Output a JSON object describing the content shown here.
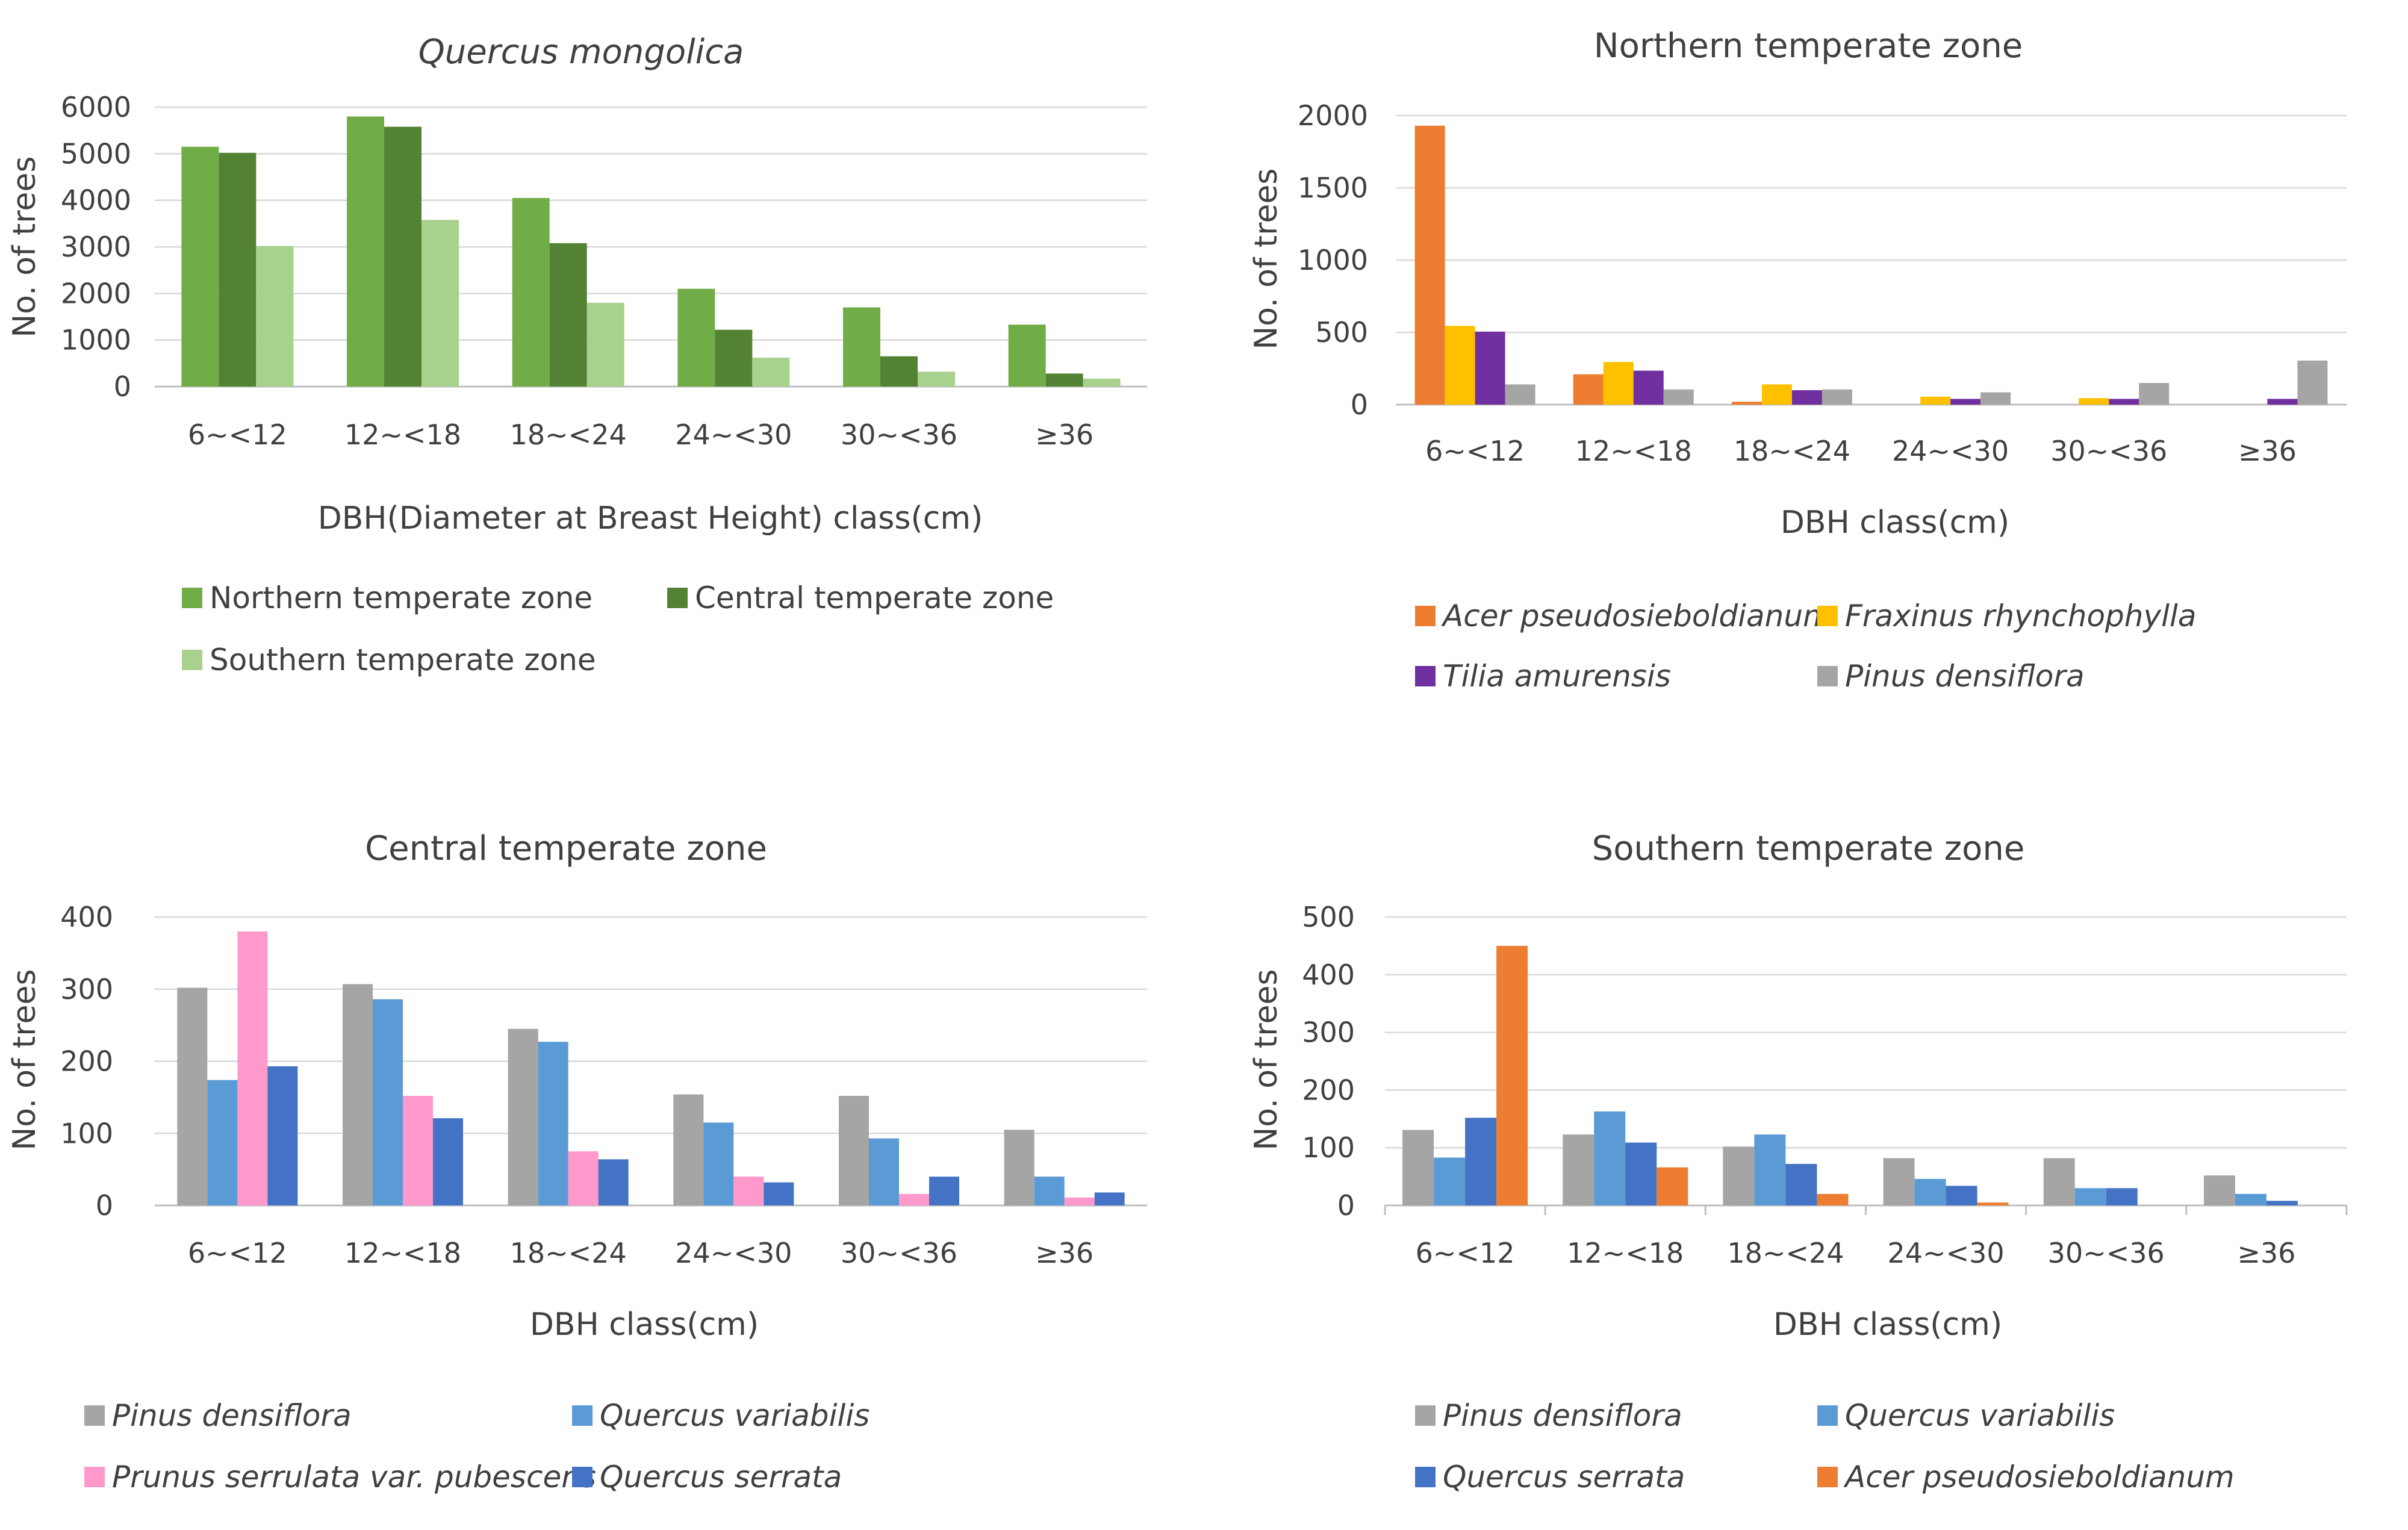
{
  "chart_data": [
    {
      "type": "bar",
      "title": "Quercus mongolica",
      "xlabel": "DBH(Diameter at Breast Height) class(cm)",
      "ylabel": "No. of trees",
      "ylim": [
        0,
        6000
      ],
      "yticks": [
        "0",
        "1000",
        "2000",
        "3000",
        "4000",
        "5000",
        "6000"
      ],
      "categories": [
        "6~<12",
        "12~<18",
        "18~<24",
        "24~<30",
        "30~<36",
        "≥36"
      ],
      "series": [
        {
          "name": "Northern temperate zone",
          "color": "#70ad47",
          "italic": false,
          "values": [
            5150,
            5800,
            4050,
            2100,
            1700,
            1330
          ]
        },
        {
          "name": "Central temperate zone",
          "color": "#548235",
          "italic": false,
          "values": [
            5020,
            5580,
            3080,
            1220,
            650,
            280
          ]
        },
        {
          "name": "Southern temperate zone",
          "color": "#a9d18e",
          "italic": false,
          "values": [
            3020,
            3580,
            1800,
            620,
            320,
            170
          ]
        }
      ]
    },
    {
      "type": "bar",
      "title": "Northern temperate zone",
      "xlabel": "DBH class(cm)",
      "ylabel": "No. of trees",
      "ylim": [
        0,
        2000
      ],
      "yticks": [
        "0",
        "500",
        "1000",
        "1500",
        "2000"
      ],
      "categories": [
        "6~<12",
        "12~<18",
        "18~<24",
        "24~<30",
        "30~<36",
        "≥36"
      ],
      "series": [
        {
          "name": "Acer pseudosieboldianum",
          "color": "#ed7d31",
          "italic": true,
          "values": [
            1930,
            210,
            20,
            0,
            0,
            0
          ]
        },
        {
          "name": "Fraxinus rhynchophylla",
          "color": "#ffc000",
          "italic": true,
          "values": [
            545,
            295,
            140,
            55,
            45,
            0
          ]
        },
        {
          "name": "Tilia amurensis",
          "color": "#7030a0",
          "italic": true,
          "values": [
            505,
            235,
            100,
            40,
            40,
            40
          ]
        },
        {
          "name": "Pinus densiflora",
          "color": "#a5a5a5",
          "italic": true,
          "values": [
            140,
            105,
            105,
            85,
            150,
            305
          ]
        }
      ]
    },
    {
      "type": "bar",
      "title": "Central temperate zone",
      "xlabel": "DBH class(cm)",
      "ylabel": "No. of trees",
      "ylim": [
        0,
        400
      ],
      "yticks": [
        "0",
        "100",
        "200",
        "300",
        "400"
      ],
      "categories": [
        "6~<12",
        "12~<18",
        "18~<24",
        "24~<30",
        "30~<36",
        "≥36"
      ],
      "series": [
        {
          "name": "Pinus densiflora",
          "color": "#a5a5a5",
          "italic": true,
          "values": [
            302,
            307,
            245,
            154,
            152,
            105
          ]
        },
        {
          "name": "Quercus variabilis",
          "color": "#5b9bd5",
          "italic": true,
          "values": [
            174,
            286,
            227,
            115,
            93,
            40
          ]
        },
        {
          "name": "Prunus serrulata var. pubescens",
          "color": "#ff99cc",
          "italic": true,
          "values": [
            380,
            152,
            75,
            40,
            16,
            11
          ]
        },
        {
          "name": "Quercus serrata",
          "color": "#4472c4",
          "italic": true,
          "values": [
            193,
            121,
            64,
            32,
            40,
            18
          ]
        }
      ]
    },
    {
      "type": "bar",
      "title": "Southern temperate zone",
      "xlabel": "DBH class(cm)",
      "ylabel": "No. of trees",
      "ylim": [
        0,
        500
      ],
      "yticks": [
        "0",
        "100",
        "200",
        "300",
        "400",
        "500"
      ],
      "categories": [
        "6~<12",
        "12~<18",
        "18~<24",
        "24~<30",
        "30~<36",
        "≥36"
      ],
      "series": [
        {
          "name": "Pinus densiflora",
          "color": "#a5a5a5",
          "italic": true,
          "values": [
            131,
            123,
            102,
            82,
            82,
            52
          ]
        },
        {
          "name": "Quercus variabilis",
          "color": "#5b9bd5",
          "italic": true,
          "values": [
            83,
            163,
            123,
            46,
            30,
            20
          ]
        },
        {
          "name": "Quercus serrata",
          "color": "#4472c4",
          "italic": true,
          "values": [
            152,
            109,
            72,
            34,
            30,
            8
          ]
        },
        {
          "name": "Acer pseudosieboldianum",
          "color": "#ed7d31",
          "italic": true,
          "values": [
            450,
            66,
            20,
            5,
            0,
            0
          ]
        }
      ]
    }
  ]
}
